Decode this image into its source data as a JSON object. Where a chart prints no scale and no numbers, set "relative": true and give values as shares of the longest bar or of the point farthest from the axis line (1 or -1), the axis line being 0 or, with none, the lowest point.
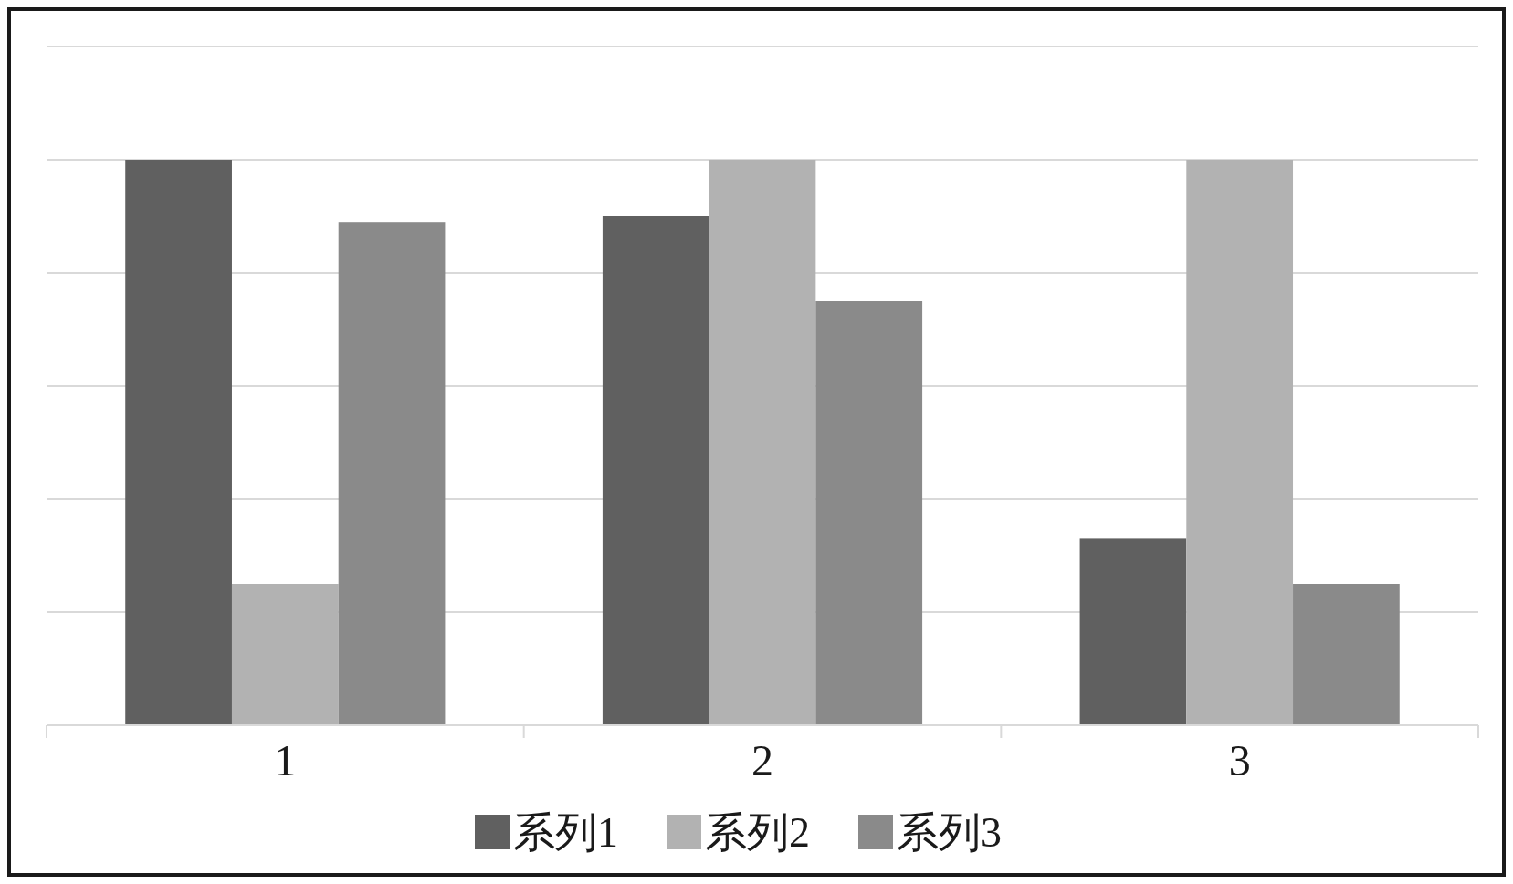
{
  "chart_data": {
    "type": "bar",
    "categories": [
      "1",
      "2",
      "3"
    ],
    "relative": true,
    "grid": "y",
    "legend": "bottom",
    "series": [
      {
        "name": "系列1",
        "color": "#606060",
        "values": [
          1,
          0.9,
          0.33
        ]
      },
      {
        "name": "系列2",
        "color": "#b2b2b2",
        "values": [
          0.25,
          1,
          1
        ]
      },
      {
        "name": "系列3",
        "color": "#8a8a8a",
        "values": [
          0.89,
          0.75,
          0.25
        ]
      }
    ]
  }
}
